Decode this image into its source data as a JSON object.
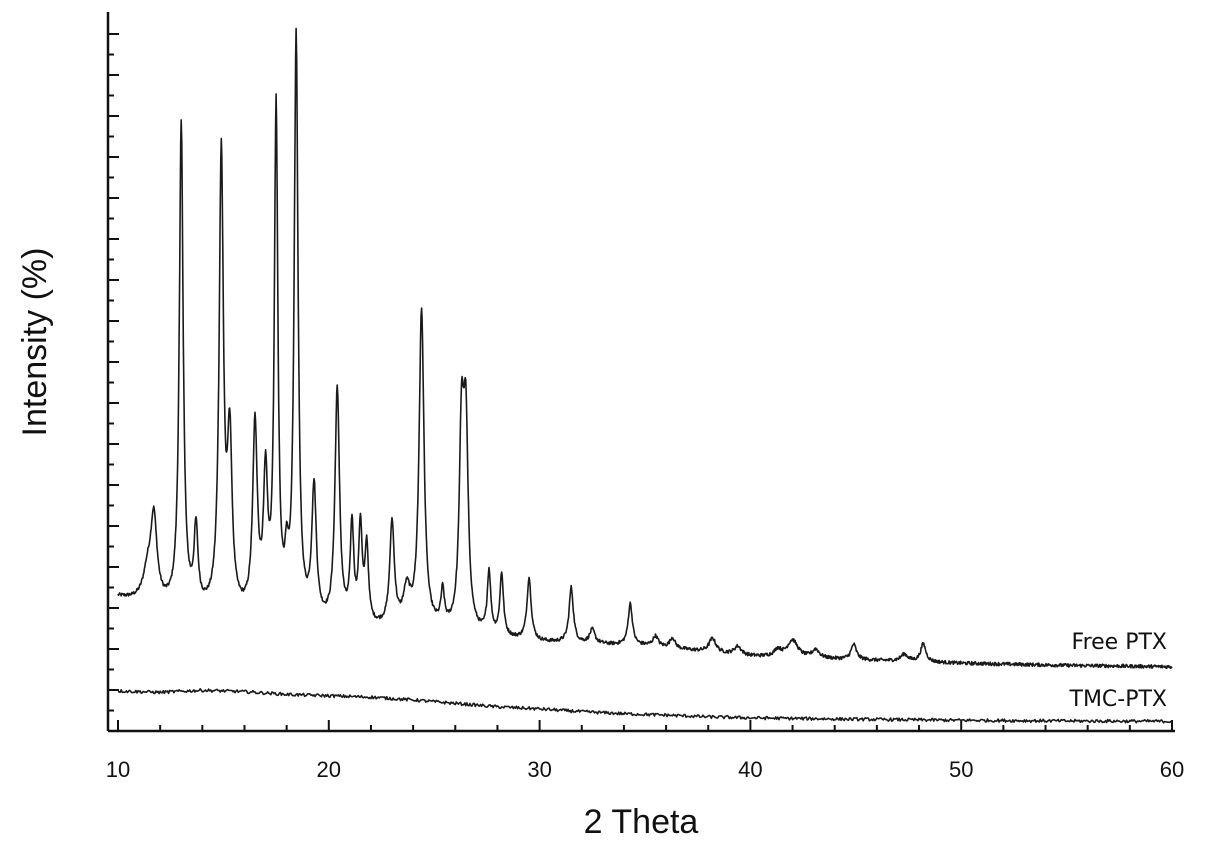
{
  "chart_data": {
    "type": "line",
    "title": "",
    "xlabel": "2 Theta",
    "ylabel": "Intensity (%)",
    "xlim": [
      10,
      60
    ],
    "ylim": [
      0,
      100
    ],
    "x_ticks": [
      10,
      20,
      30,
      40,
      50,
      60
    ],
    "y_tick_labels_shown": false,
    "grid": false,
    "legend": "none (series labelled at right end of each trace)",
    "line_color": "#1a1a1a",
    "series": [
      {
        "name": "Free PTX",
        "baseline": [
          [
            10,
            18
          ],
          [
            12,
            16.5
          ],
          [
            16,
            15
          ],
          [
            20,
            13.5
          ],
          [
            25,
            13
          ],
          [
            30,
            11.5
          ],
          [
            35,
            11
          ],
          [
            40,
            9.5
          ],
          [
            45,
            9
          ],
          [
            50,
            8.5
          ],
          [
            55,
            8.2
          ],
          [
            60,
            8
          ]
        ],
        "peaks": [
          [
            11.4,
            4,
            0.25
          ],
          [
            11.7,
            12,
            0.18
          ],
          [
            13.0,
            70,
            0.11
          ],
          [
            13.7,
            11,
            0.11
          ],
          [
            14.9,
            66,
            0.12
          ],
          [
            15.3,
            24,
            0.13
          ],
          [
            16.5,
            27,
            0.13
          ],
          [
            17.0,
            19,
            0.12
          ],
          [
            17.5,
            73,
            0.1
          ],
          [
            18.0,
            6,
            0.1
          ],
          [
            18.45,
            84,
            0.11
          ],
          [
            19.3,
            19,
            0.13
          ],
          [
            20.4,
            34,
            0.13
          ],
          [
            21.1,
            14,
            0.1
          ],
          [
            21.5,
            14,
            0.1
          ],
          [
            21.8,
            11,
            0.1
          ],
          [
            23.0,
            15,
            0.13
          ],
          [
            23.7,
            5,
            0.2
          ],
          [
            24.4,
            46,
            0.14
          ],
          [
            25.4,
            5,
            0.1
          ],
          [
            26.3,
            28,
            0.13
          ],
          [
            26.5,
            28,
            0.13
          ],
          [
            27.6,
            9,
            0.1
          ],
          [
            28.2,
            9,
            0.1
          ],
          [
            29.5,
            9,
            0.12
          ],
          [
            31.5,
            8,
            0.12
          ],
          [
            32.5,
            2,
            0.15
          ],
          [
            34.3,
            6,
            0.12
          ],
          [
            35.5,
            1.5,
            0.15
          ],
          [
            36.3,
            1.5,
            0.15
          ],
          [
            38.2,
            2,
            0.2
          ],
          [
            39.4,
            1.2,
            0.2
          ],
          [
            41.3,
            1.0,
            0.2
          ],
          [
            42.0,
            2.5,
            0.3
          ],
          [
            43.1,
            1.2,
            0.2
          ],
          [
            44.9,
            2.2,
            0.15
          ],
          [
            47.3,
            1.0,
            0.2
          ],
          [
            48.2,
            2.6,
            0.15
          ]
        ],
        "end_value": 8
      },
      {
        "name": "TMC-PTX",
        "points": [
          [
            10,
            4.5
          ],
          [
            12,
            4.3
          ],
          [
            14,
            4.6
          ],
          [
            16,
            4.4
          ],
          [
            18,
            4.0
          ],
          [
            20,
            3.8
          ],
          [
            22,
            3.6
          ],
          [
            24,
            3.2
          ],
          [
            26,
            2.7
          ],
          [
            28,
            2.2
          ],
          [
            30,
            1.9
          ],
          [
            32,
            1.5
          ],
          [
            34,
            1.2
          ],
          [
            36,
            1.0
          ],
          [
            38,
            0.75
          ],
          [
            40,
            0.6
          ],
          [
            45,
            0.4
          ],
          [
            50,
            0.25
          ],
          [
            55,
            0.15
          ],
          [
            60,
            0.1
          ]
        ],
        "end_value": 0.1
      }
    ]
  }
}
